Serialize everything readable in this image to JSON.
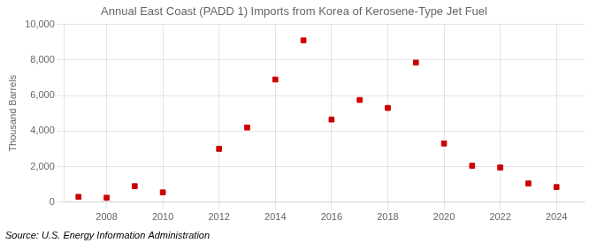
{
  "chart_data": {
    "type": "scatter",
    "title": "Annual East Coast (PADD 1) Imports from Korea of Kerosene-Type Jet Fuel",
    "ylabel": "Thousand Barrels",
    "annotations": [
      "Source: U.S. Energy Information Administration"
    ],
    "x": [
      2007,
      2008,
      2009,
      2010,
      2012,
      2013,
      2014,
      2015,
      2016,
      2017,
      2018,
      2019,
      2020,
      2021,
      2022,
      2023,
      2024
    ],
    "values": [
      300,
      250,
      900,
      550,
      3000,
      4200,
      6900,
      9100,
      4650,
      5750,
      5300,
      7850,
      3300,
      2050,
      1950,
      1050,
      850
    ],
    "color": "#cc0000",
    "marker": "square",
    "xlim": [
      2006.5,
      2025
    ],
    "ylim": [
      0,
      10000
    ],
    "xticks": [
      2008,
      2010,
      2012,
      2014,
      2016,
      2018,
      2020,
      2022,
      2024
    ],
    "yticks": [
      0,
      {
        "value": 2000,
        "label": "2,000"
      },
      {
        "value": 4000,
        "label": "4,000"
      },
      {
        "value": 6000,
        "label": "6,000"
      },
      {
        "value": 8000,
        "label": "8,000"
      },
      {
        "value": 10000,
        "label": "10,000"
      }
    ],
    "grid": true
  }
}
